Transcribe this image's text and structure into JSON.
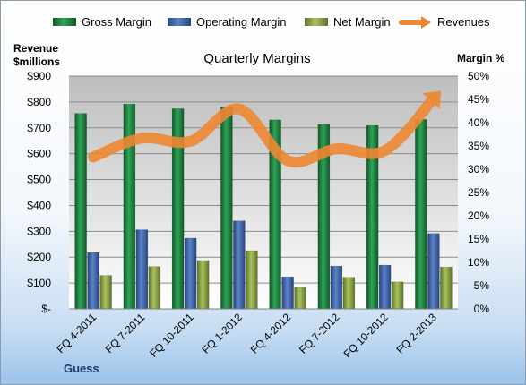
{
  "chart_data": {
    "type": "bar",
    "title": "Quarterly Margins",
    "categories": [
      "FQ 4-2011",
      "FQ 7-2011",
      "FQ 10-2011",
      "FQ 1-2012",
      "FQ 4-2012",
      "FQ 7-2012",
      "FQ 10-2012",
      "FQ 2-2013"
    ],
    "left_axis": {
      "label_line1": "Revenue",
      "label_line2": "$millions",
      "range": [
        0,
        900
      ],
      "ticks": [
        0,
        100,
        200,
        300,
        400,
        500,
        600,
        700,
        800,
        900
      ],
      "tick_labels": [
        "$-",
        "$100",
        "$200",
        "$300",
        "$400",
        "$500",
        "$600",
        "$700",
        "$800",
        "$900"
      ]
    },
    "right_axis": {
      "label": "Margin %",
      "range": [
        0,
        50
      ],
      "ticks": [
        0,
        5,
        10,
        15,
        20,
        25,
        30,
        35,
        40,
        45,
        50
      ],
      "tick_labels": [
        "0%",
        "5%",
        "10%",
        "15%",
        "20%",
        "25%",
        "30%",
        "35%",
        "40%",
        "45%",
        "50%"
      ]
    },
    "series": [
      {
        "name": "Gross Margin",
        "axis": "right",
        "kind": "bar",
        "color": "#1e7a3c",
        "values": [
          42,
          44,
          43,
          43.3,
          40.6,
          39.6,
          39.4,
          40.7
        ]
      },
      {
        "name": "Operating Margin",
        "axis": "right",
        "kind": "bar",
        "color": "#3d63a8",
        "values": [
          12.1,
          17,
          15.2,
          18.9,
          6.9,
          9.2,
          9.4,
          16.2
        ]
      },
      {
        "name": "Net Margin",
        "axis": "right",
        "kind": "bar",
        "color": "#8fa84a",
        "values": [
          7.2,
          9.1,
          10.4,
          12.5,
          4.7,
          6.8,
          5.8,
          9
        ]
      },
      {
        "name": "Revenues",
        "axis": "left",
        "kind": "line",
        "color": "#ed8733",
        "values": [
          587,
          660,
          648,
          773,
          573,
          619,
          612,
          813
        ]
      }
    ],
    "legend_position": "top",
    "grid": true,
    "footer": "Guess"
  }
}
